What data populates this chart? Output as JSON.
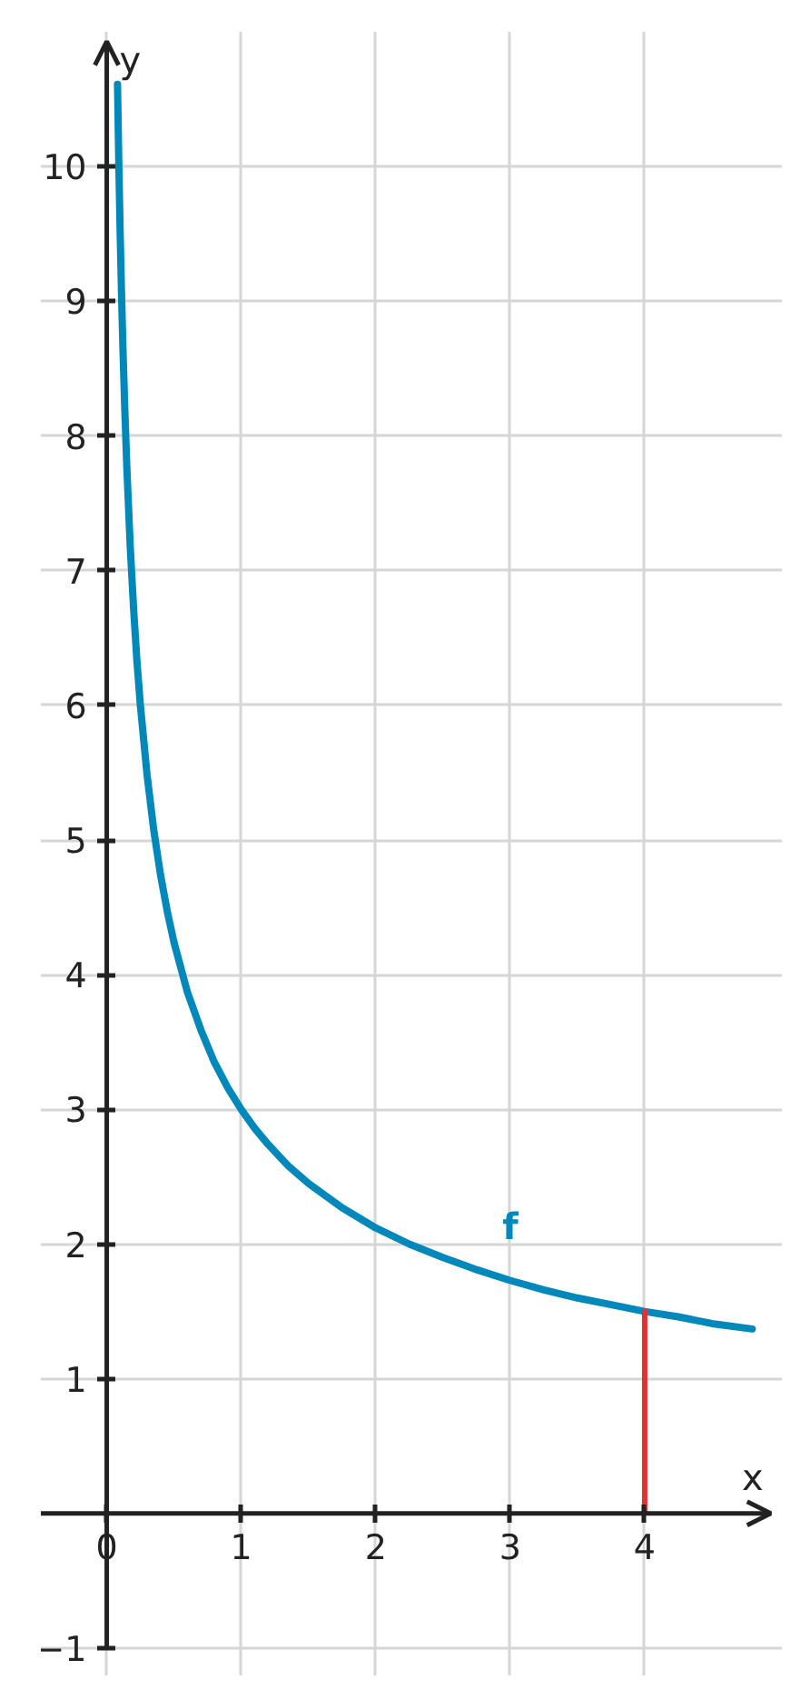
{
  "chart_data": {
    "type": "line",
    "xlabel": "x",
    "ylabel": "y",
    "xlim": [
      -0.49,
      5.02
    ],
    "ylim": [
      -1,
      11
    ],
    "xticks": [
      0,
      1,
      2,
      3,
      4
    ],
    "yticks": [
      {
        "value": -1,
        "label": "−1"
      },
      1,
      2,
      3,
      4,
      5,
      6,
      7,
      8,
      9,
      10
    ],
    "grid": true,
    "series": [
      {
        "name": "f",
        "color": "#0088bb",
        "x": [
          0.08,
          0.09,
          0.1,
          0.11,
          0.12,
          0.135,
          0.15,
          0.175,
          0.2,
          0.225,
          0.25,
          0.3,
          0.35,
          0.4,
          0.45,
          0.5,
          0.6,
          0.7,
          0.8,
          0.9,
          1,
          1.1,
          1.2,
          1.35,
          1.5,
          1.75,
          2,
          2.25,
          2.5,
          2.75,
          3,
          3.25,
          3.5,
          3.75,
          4,
          4.25,
          4.5,
          4.8
        ],
        "values": [
          10.61,
          10.0,
          9.49,
          9.05,
          8.66,
          8.17,
          7.75,
          7.17,
          6.71,
          6.32,
          6.0,
          5.48,
          5.07,
          4.74,
          4.47,
          4.24,
          3.87,
          3.59,
          3.35,
          3.16,
          3.0,
          2.86,
          2.74,
          2.58,
          2.45,
          2.27,
          2.12,
          2.0,
          1.9,
          1.81,
          1.73,
          1.66,
          1.6,
          1.55,
          1.5,
          1.46,
          1.41,
          1.37
        ]
      },
      {
        "color": "#dd3333",
        "x": [
          4,
          4
        ],
        "values": [
          0,
          1.5
        ]
      }
    ]
  }
}
